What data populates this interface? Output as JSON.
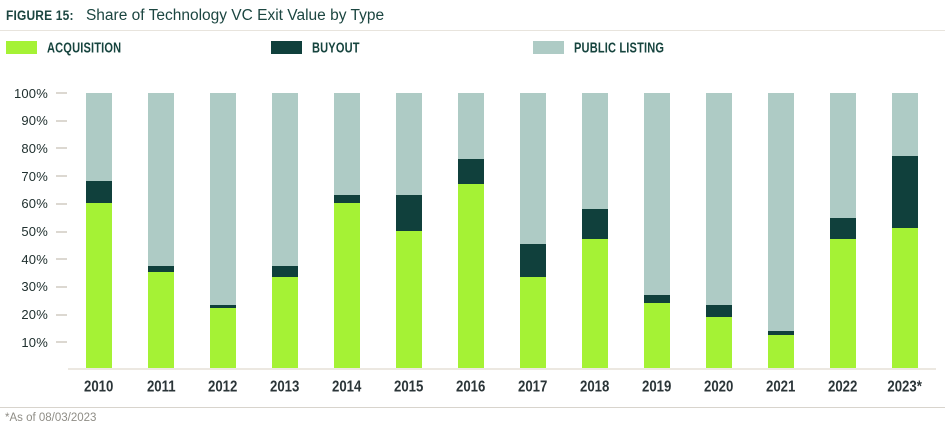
{
  "header": {
    "figure_label": "FIGURE 15:",
    "title": "Share of Technology VC Exit Value by Type"
  },
  "legend": [
    {
      "label": "ACQUISITION",
      "color": "#a5f235"
    },
    {
      "label": "BUYOUT",
      "color": "#10403c"
    },
    {
      "label": "PUBLIC LISTING",
      "color": "#aecbc5"
    }
  ],
  "footnote": "*As of 08/03/2023",
  "chart_data": {
    "type": "bar",
    "stacked": true,
    "title": "Share of Technology VC Exit Value by Type",
    "xlabel": "",
    "ylabel": "",
    "ylim": [
      0,
      100
    ],
    "grid": false,
    "legend_position": "top",
    "yticks": [
      "100%",
      "90%",
      "80%",
      "70%",
      "60%",
      "50%",
      "40%",
      "30%",
      "20%",
      "10%"
    ],
    "categories": [
      "2010",
      "2011",
      "2012",
      "2013",
      "2014",
      "2015",
      "2016",
      "2017",
      "2018",
      "2019",
      "2020",
      "2021",
      "2022",
      "2023*"
    ],
    "series": [
      {
        "name": "Acquisition",
        "color": "#a5f235",
        "values": [
          60,
          35,
          22,
          33,
          60,
          50,
          67,
          33,
          47,
          23.5,
          18.5,
          12,
          47,
          51
        ]
      },
      {
        "name": "Buyout",
        "color": "#10403c",
        "values": [
          8,
          2,
          1,
          4,
          3,
          13,
          9,
          12,
          11,
          3,
          4.5,
          1.5,
          7.5,
          26
        ]
      },
      {
        "name": "Public Listing",
        "color": "#aecbc5",
        "values": [
          32,
          63,
          77,
          63,
          37,
          37,
          24,
          55,
          42,
          73.5,
          77,
          86.5,
          45.5,
          23
        ]
      }
    ]
  }
}
